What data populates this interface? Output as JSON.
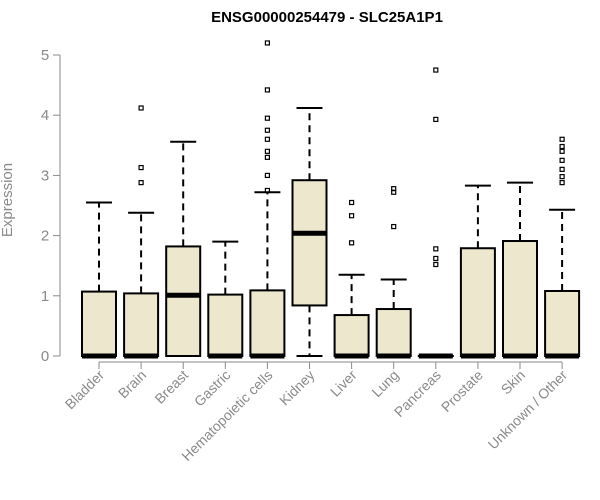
{
  "chart_data": {
    "type": "boxplot",
    "title": "ENSG00000254479 - SLC25A1P1",
    "xlabel": "",
    "ylabel": "Expression",
    "ylim": [
      0,
      5.2
    ],
    "yticks": [
      0,
      1,
      2,
      3,
      4,
      5
    ],
    "grid": false,
    "legend": "none",
    "box_fill": "#ede7ce",
    "stroke": "#000000",
    "label_color": "#8a8a8a",
    "categories": [
      "Bladder",
      "Brain",
      "Breast",
      "Gastric",
      "Hematopoietic cells",
      "Kidney",
      "Liver",
      "Lung",
      "Pancreas",
      "Prostate",
      "Skin",
      "Unknown / Other"
    ],
    "boxes": [
      {
        "whisker_low": 0,
        "q1": 0,
        "median": 0,
        "q3": 1.07,
        "whisker_high": 2.55,
        "outliers": []
      },
      {
        "whisker_low": 0,
        "q1": 0,
        "median": 0,
        "q3": 1.04,
        "whisker_high": 2.38,
        "outliers": [
          2.88,
          3.13,
          4.12
        ]
      },
      {
        "whisker_low": 0,
        "q1": 0,
        "median": 1.01,
        "q3": 1.82,
        "whisker_high": 3.56,
        "outliers": []
      },
      {
        "whisker_low": 0,
        "q1": 0,
        "median": 0,
        "q3": 1.02,
        "whisker_high": 1.9,
        "outliers": []
      },
      {
        "whisker_low": 0,
        "q1": 0,
        "median": 0,
        "q3": 1.09,
        "whisker_high": 2.72,
        "outliers": [
          2.75,
          3.0,
          3.3,
          3.4,
          3.6,
          3.75,
          3.95,
          4.42,
          5.2
        ]
      },
      {
        "whisker_low": 0,
        "q1": 0.84,
        "median": 2.04,
        "q3": 2.92,
        "whisker_high": 4.12,
        "outliers": []
      },
      {
        "whisker_low": 0,
        "q1": 0,
        "median": 0,
        "q3": 0.68,
        "whisker_high": 1.35,
        "outliers": [
          1.88,
          2.33,
          2.55
        ]
      },
      {
        "whisker_low": 0,
        "q1": 0,
        "median": 0,
        "q3": 0.78,
        "whisker_high": 1.27,
        "outliers": [
          2.15,
          2.72,
          2.78
        ]
      },
      {
        "whisker_low": 0,
        "q1": 0,
        "median": 0,
        "q3": 0,
        "whisker_high": 0,
        "outliers": [
          1.52,
          1.62,
          1.78,
          3.93,
          4.75
        ]
      },
      {
        "whisker_low": 0,
        "q1": 0,
        "median": 0,
        "q3": 1.79,
        "whisker_high": 2.83,
        "outliers": []
      },
      {
        "whisker_low": 0,
        "q1": 0,
        "median": 0,
        "q3": 1.91,
        "whisker_high": 2.88,
        "outliers": []
      },
      {
        "whisker_low": 0,
        "q1": 0,
        "median": 0,
        "q3": 1.08,
        "whisker_high": 2.43,
        "outliers": [
          2.88,
          2.98,
          3.1,
          3.25,
          3.4,
          3.48,
          3.6
        ]
      }
    ]
  }
}
